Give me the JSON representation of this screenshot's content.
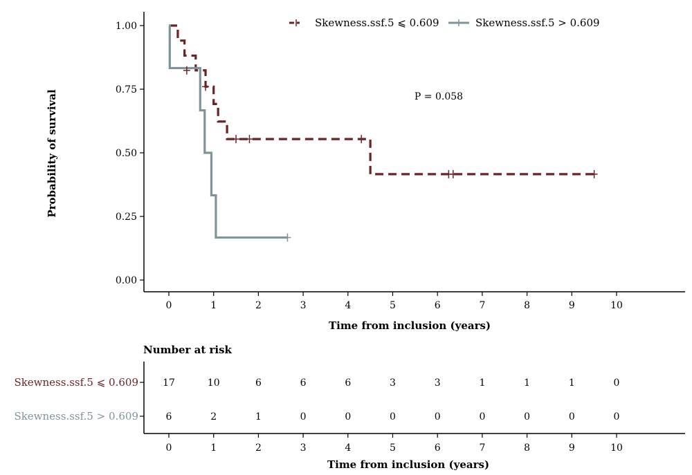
{
  "chart_data": {
    "type": "line",
    "subtype": "kaplan-meier",
    "title": "",
    "xlabel": "Time from inclusion (years)",
    "ylabel": "Probability of survival",
    "xlim": [
      -0.55,
      11.6
    ],
    "ylim": [
      -0.05,
      1.05
    ],
    "x_ticks": [
      0,
      1,
      2,
      3,
      4,
      5,
      6,
      7,
      8,
      9,
      10
    ],
    "y_ticks": [
      0.0,
      0.25,
      0.5,
      0.75,
      1.0
    ],
    "y_tick_labels": [
      "0.00",
      "0.25",
      "0.50",
      "0.75",
      "1.00"
    ],
    "grid": false,
    "legend_position": "top",
    "annotation": "P = 0.058",
    "colors": {
      "low": "#6b2324",
      "high": "#7f949a",
      "axis": "#000000"
    },
    "series": [
      {
        "name": "Skewness.ssf.5 ⩽ 0.609",
        "color": "#6b2324",
        "line_style": "dashed",
        "steps": [
          [
            0.0,
            1.0
          ],
          [
            0.2,
            0.941
          ],
          [
            0.35,
            0.882
          ],
          [
            0.6,
            0.824
          ],
          [
            0.82,
            0.76
          ],
          [
            1.0,
            0.692
          ],
          [
            1.1,
            0.623
          ],
          [
            1.3,
            0.554
          ],
          [
            4.5,
            0.416
          ],
          [
            9.5,
            0.416
          ]
        ],
        "censored": [
          [
            0.4,
            0.824
          ],
          [
            0.82,
            0.76
          ],
          [
            1.5,
            0.554
          ],
          [
            1.8,
            0.554
          ],
          [
            4.3,
            0.554
          ],
          [
            6.25,
            0.416
          ],
          [
            6.35,
            0.416
          ],
          [
            9.5,
            0.416
          ]
        ]
      },
      {
        "name": "Skewness.ssf.5 > 0.609",
        "color": "#7f949a",
        "line_style": "solid",
        "steps": [
          [
            0.0,
            1.0
          ],
          [
            0.02,
            0.833
          ],
          [
            0.7,
            0.667
          ],
          [
            0.8,
            0.5
          ],
          [
            0.95,
            0.333
          ],
          [
            1.05,
            0.167
          ],
          [
            2.65,
            0.167
          ]
        ],
        "censored": [
          [
            2.65,
            0.167
          ]
        ]
      }
    ]
  },
  "risk_table": {
    "title": "Number at risk",
    "xlabel": "Time from inclusion (years)",
    "times": [
      0,
      1,
      2,
      3,
      4,
      5,
      6,
      7,
      8,
      9,
      10
    ],
    "rows": [
      {
        "label": "Skewness.ssf.5 ⩽ 0.609",
        "color": "#6b2324",
        "counts": [
          "17",
          "10",
          "6",
          "6",
          "6",
          "3",
          "3",
          "1",
          "1",
          "1",
          "0"
        ]
      },
      {
        "label": "Skewness.ssf.5 > 0.609",
        "color": "#7f949a",
        "counts": [
          "6",
          "2",
          "1",
          "0",
          "0",
          "0",
          "0",
          "0",
          "0",
          "0",
          "0"
        ]
      }
    ]
  }
}
